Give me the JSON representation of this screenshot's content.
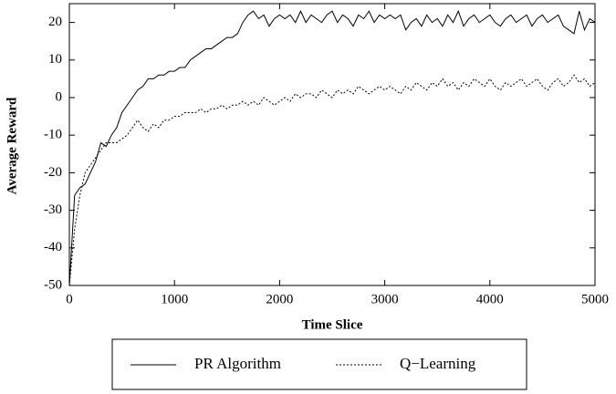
{
  "chart_data": {
    "type": "line",
    "xlabel": "Time Slice",
    "ylabel": "Average Reward",
    "x": [
      0,
      50,
      100,
      150,
      200,
      250,
      300,
      350,
      400,
      450,
      500,
      550,
      600,
      650,
      700,
      750,
      800,
      850,
      900,
      950,
      1000,
      1050,
      1100,
      1150,
      1200,
      1250,
      1300,
      1350,
      1400,
      1450,
      1500,
      1550,
      1600,
      1650,
      1700,
      1750,
      1800,
      1850,
      1900,
      1950,
      2000,
      2050,
      2100,
      2150,
      2200,
      2250,
      2300,
      2350,
      2400,
      2450,
      2500,
      2550,
      2600,
      2650,
      2700,
      2750,
      2800,
      2850,
      2900,
      2950,
      3000,
      3050,
      3100,
      3150,
      3200,
      3250,
      3300,
      3350,
      3400,
      3450,
      3500,
      3550,
      3600,
      3650,
      3700,
      3750,
      3800,
      3850,
      3900,
      3950,
      4000,
      4050,
      4100,
      4150,
      4200,
      4250,
      4300,
      4350,
      4400,
      4450,
      4500,
      4550,
      4600,
      4650,
      4700,
      4750,
      4800,
      4850,
      4900,
      4950,
      5000
    ],
    "series": [
      {
        "name": "PR Algorithm",
        "color": "#000000",
        "style": "solid",
        "values": [
          -50,
          -26,
          -24,
          -23,
          -20,
          -17,
          -12,
          -13,
          -10,
          -8,
          -4,
          -2,
          0,
          2,
          3,
          5,
          5,
          6,
          6,
          7,
          7,
          8,
          8,
          10,
          11,
          12,
          13,
          13,
          14,
          15,
          16,
          16,
          17,
          20,
          22,
          23,
          21,
          22,
          19,
          21,
          22,
          21,
          22,
          20,
          23,
          20,
          22,
          21,
          20,
          22,
          23,
          20,
          22,
          21,
          19,
          22,
          21,
          23,
          20,
          22,
          21,
          22,
          21,
          22,
          18,
          20,
          21,
          19,
          22,
          20,
          21,
          19,
          22,
          20,
          23,
          19,
          21,
          22,
          20,
          21,
          22,
          20,
          19,
          21,
          22,
          20,
          21,
          22,
          19,
          21,
          22,
          20,
          21,
          22,
          19,
          18,
          17,
          23,
          18,
          21,
          20
        ]
      },
      {
        "name": "Q−Learning",
        "color": "#000000",
        "style": "dotted",
        "values": [
          -50,
          -35,
          -26,
          -20,
          -18,
          -16,
          -14,
          -12,
          -12,
          -12,
          -11,
          -10,
          -8,
          -6,
          -8,
          -9,
          -7,
          -8,
          -6,
          -6,
          -5,
          -5,
          -4,
          -4,
          -4,
          -3,
          -4,
          -3,
          -3,
          -2,
          -3,
          -2,
          -2,
          -1,
          -2,
          -1,
          -2,
          0,
          -1,
          -2,
          -1,
          0,
          -1,
          1,
          0,
          1,
          1,
          0,
          2,
          1,
          0,
          2,
          1,
          2,
          1,
          3,
          2,
          1,
          2,
          3,
          2,
          3,
          2,
          1,
          3,
          2,
          4,
          3,
          2,
          4,
          3,
          5,
          3,
          4,
          2,
          4,
          3,
          5,
          4,
          3,
          5,
          3,
          2,
          4,
          3,
          4,
          5,
          3,
          4,
          5,
          3,
          2,
          4,
          5,
          3,
          4,
          6,
          4,
          5,
          3,
          4
        ]
      }
    ],
    "xlim": [
      0,
      5000
    ],
    "xticks": [
      0,
      1000,
      2000,
      3000,
      4000,
      5000
    ],
    "ylim": [
      -50,
      25
    ],
    "yticks": [
      -50,
      -40,
      -30,
      -20,
      -10,
      0,
      10,
      20
    ],
    "grid": false,
    "legend": "bottom"
  }
}
